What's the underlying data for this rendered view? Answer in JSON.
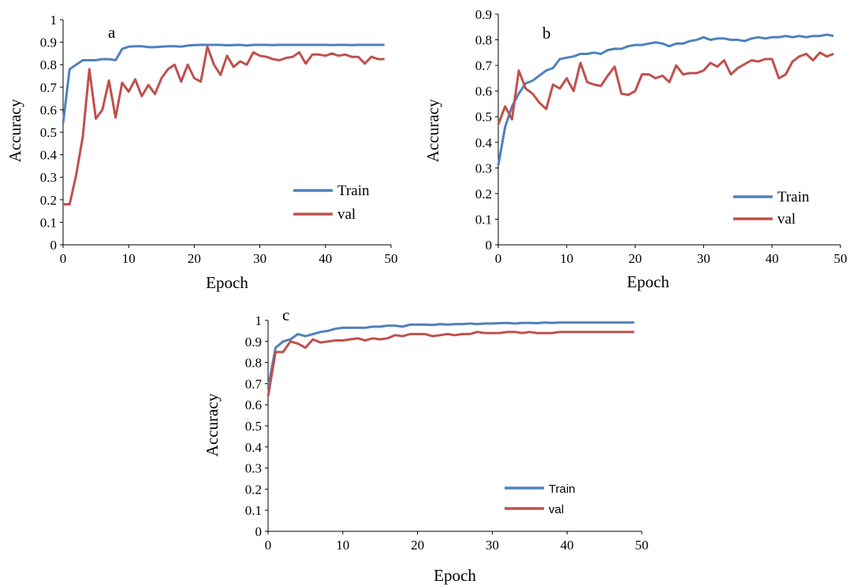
{
  "chart_data": [
    {
      "type": "line",
      "panel_label": "a",
      "xlabel": "Epoch",
      "ylabel": "Accuracy",
      "xlim": [
        0,
        50
      ],
      "ylim": [
        0,
        1
      ],
      "xticks": [
        "0",
        "10",
        "20",
        "30",
        "40",
        "50"
      ],
      "yticks": [
        "0",
        "0.1",
        "0.2",
        "0.3",
        "0.4",
        "0.5",
        "0.6",
        "0.7",
        "0.8",
        "0.9",
        "1"
      ],
      "grid": false,
      "legend_position": "bottom-right",
      "series": [
        {
          "name": "Train",
          "color": "#4F81BD",
          "values": [
            0.54,
            0.78,
            0.8,
            0.82,
            0.82,
            0.82,
            0.825,
            0.825,
            0.82,
            0.87,
            0.88,
            0.882,
            0.882,
            0.878,
            0.878,
            0.88,
            0.882,
            0.882,
            0.88,
            0.885,
            0.887,
            0.888,
            0.888,
            0.888,
            0.888,
            0.886,
            0.887,
            0.888,
            0.885,
            0.888,
            0.888,
            0.888,
            0.887,
            0.888,
            0.888,
            0.888,
            0.888,
            0.888,
            0.888,
            0.888,
            0.888,
            0.887,
            0.888,
            0.888,
            0.887,
            0.888,
            0.888,
            0.888,
            0.888,
            0.888
          ]
        },
        {
          "name": "val",
          "color": "#C0504D",
          "values": [
            0.18,
            0.18,
            0.31,
            0.48,
            0.78,
            0.56,
            0.6,
            0.73,
            0.565,
            0.72,
            0.68,
            0.735,
            0.66,
            0.71,
            0.67,
            0.74,
            0.78,
            0.8,
            0.725,
            0.8,
            0.74,
            0.725,
            0.88,
            0.8,
            0.755,
            0.84,
            0.79,
            0.815,
            0.8,
            0.855,
            0.84,
            0.835,
            0.825,
            0.82,
            0.83,
            0.835,
            0.855,
            0.805,
            0.845,
            0.845,
            0.84,
            0.85,
            0.84,
            0.845,
            0.835,
            0.835,
            0.805,
            0.835,
            0.825,
            0.825
          ]
        }
      ]
    },
    {
      "type": "line",
      "panel_label": "b",
      "xlabel": "Epoch",
      "ylabel": "Accuracy",
      "xlim": [
        0,
        50
      ],
      "ylim": [
        0,
        0.9
      ],
      "xticks": [
        "0",
        "10",
        "20",
        "30",
        "40",
        "50"
      ],
      "yticks": [
        "0",
        "0.1",
        "0.2",
        "0.3",
        "0.4",
        "0.5",
        "0.6",
        "0.7",
        "0.8",
        "0.9"
      ],
      "grid": false,
      "legend_position": "bottom-right",
      "series": [
        {
          "name": "Train",
          "color": "#4F81BD",
          "values": [
            0.31,
            0.46,
            0.54,
            0.59,
            0.63,
            0.64,
            0.66,
            0.68,
            0.69,
            0.725,
            0.73,
            0.735,
            0.745,
            0.745,
            0.75,
            0.745,
            0.76,
            0.765,
            0.765,
            0.775,
            0.78,
            0.78,
            0.785,
            0.79,
            0.785,
            0.775,
            0.785,
            0.785,
            0.795,
            0.8,
            0.81,
            0.8,
            0.805,
            0.805,
            0.8,
            0.8,
            0.795,
            0.805,
            0.81,
            0.805,
            0.81,
            0.81,
            0.815,
            0.81,
            0.815,
            0.81,
            0.815,
            0.815,
            0.82,
            0.815
          ]
        },
        {
          "name": "val",
          "color": "#C0504D",
          "values": [
            0.47,
            0.54,
            0.49,
            0.68,
            0.61,
            0.59,
            0.555,
            0.53,
            0.625,
            0.61,
            0.65,
            0.6,
            0.71,
            0.635,
            0.625,
            0.62,
            0.66,
            0.695,
            0.59,
            0.585,
            0.6,
            0.665,
            0.665,
            0.65,
            0.66,
            0.635,
            0.7,
            0.665,
            0.67,
            0.67,
            0.68,
            0.71,
            0.695,
            0.72,
            0.665,
            0.69,
            0.705,
            0.72,
            0.715,
            0.725,
            0.725,
            0.65,
            0.665,
            0.715,
            0.735,
            0.745,
            0.72,
            0.75,
            0.735,
            0.745
          ]
        }
      ]
    },
    {
      "type": "line",
      "panel_label": "c",
      "xlabel": "Epoch",
      "ylabel": "Accuracy",
      "xlim": [
        0,
        50
      ],
      "ylim": [
        0,
        1
      ],
      "xticks": [
        "0",
        "10",
        "20",
        "30",
        "40",
        "50"
      ],
      "yticks": [
        "0",
        "0.1",
        "0.2",
        "0.3",
        "0.4",
        "0.5",
        "0.6",
        "0.7",
        "0.8",
        "0.9",
        "1"
      ],
      "grid": false,
      "legend_position": "bottom-right",
      "series": [
        {
          "name": "Train",
          "color": "#4F81BD",
          "values": [
            0.68,
            0.87,
            0.9,
            0.91,
            0.935,
            0.925,
            0.935,
            0.945,
            0.95,
            0.96,
            0.965,
            0.965,
            0.965,
            0.965,
            0.97,
            0.97,
            0.975,
            0.975,
            0.97,
            0.98,
            0.98,
            0.98,
            0.978,
            0.982,
            0.98,
            0.982,
            0.982,
            0.985,
            0.982,
            0.985,
            0.985,
            0.987,
            0.988,
            0.985,
            0.988,
            0.988,
            0.987,
            0.99,
            0.988,
            0.99,
            0.99,
            0.99,
            0.99,
            0.99,
            0.99,
            0.99,
            0.99,
            0.99,
            0.99,
            0.99
          ]
        },
        {
          "name": "val",
          "color": "#C0504D",
          "values": [
            0.64,
            0.85,
            0.85,
            0.9,
            0.89,
            0.87,
            0.91,
            0.895,
            0.9,
            0.905,
            0.905,
            0.91,
            0.915,
            0.905,
            0.915,
            0.91,
            0.915,
            0.93,
            0.925,
            0.935,
            0.935,
            0.935,
            0.925,
            0.93,
            0.935,
            0.93,
            0.935,
            0.935,
            0.945,
            0.94,
            0.94,
            0.94,
            0.945,
            0.945,
            0.94,
            0.945,
            0.94,
            0.94,
            0.94,
            0.945,
            0.945,
            0.945,
            0.945,
            0.945,
            0.945,
            0.945,
            0.945,
            0.945,
            0.945,
            0.945
          ]
        }
      ]
    }
  ]
}
